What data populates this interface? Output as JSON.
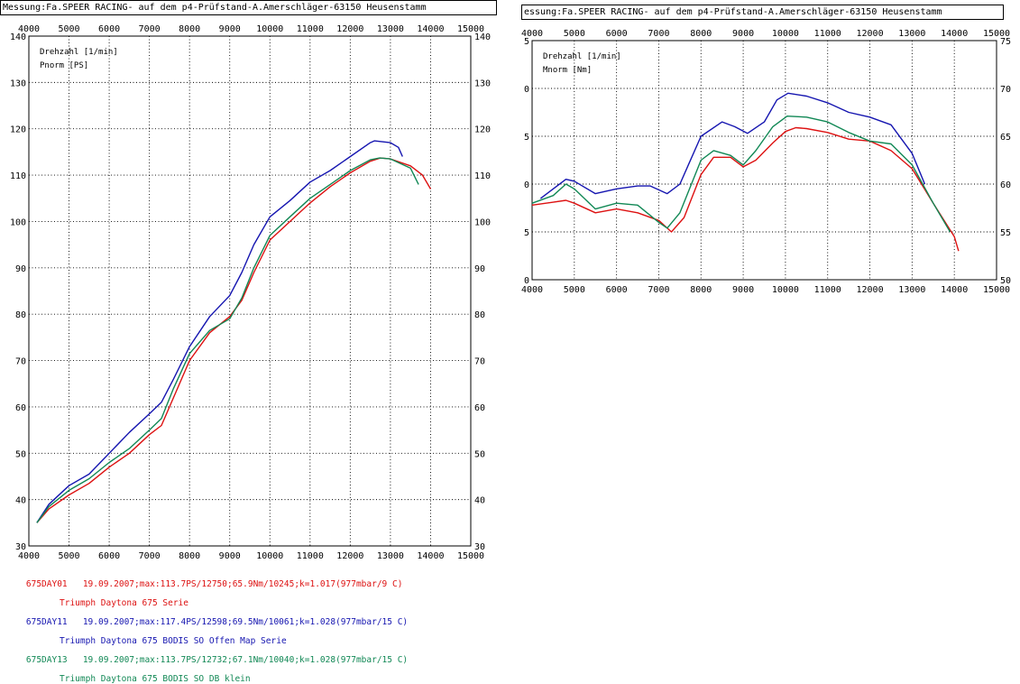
{
  "headers": {
    "left": "Messung:Fa.SPEER RACING- auf dem p4-Prüfstand-A.Amerschläger-63150 Heusenstamm",
    "right": "essung:Fa.SPEER RACING- auf dem p4-Prüfstand-A.Amerschläger-63150 Heusenstamm"
  },
  "colors": {
    "red": "#dd1111",
    "blue": "#1515b0",
    "green": "#118855",
    "grid": "#000000"
  },
  "chart_data": [
    {
      "type": "line",
      "title": "",
      "xlabel": "Drehzahl [1/min]",
      "ylabel": "Pnorm [PS]",
      "xlim": [
        4000,
        15000
      ],
      "ylim": [
        30,
        140
      ],
      "x_ticks": [
        4000,
        5000,
        6000,
        7000,
        8000,
        9000,
        10000,
        11000,
        12000,
        13000,
        14000,
        15000
      ],
      "y_ticks": [
        30,
        40,
        50,
        60,
        70,
        80,
        90,
        100,
        110,
        120,
        130,
        140
      ],
      "grid": true,
      "series": [
        {
          "name": "675DAY01",
          "color": "red",
          "x": [
            4200,
            4500,
            5000,
            5500,
            6000,
            6500,
            7000,
            7300,
            7600,
            8000,
            8500,
            9000,
            9300,
            9600,
            10000,
            10500,
            11000,
            11500,
            12000,
            12500,
            12750,
            13000,
            13500,
            13800,
            14000
          ],
          "y": [
            35,
            38,
            41,
            43.5,
            47,
            50,
            54,
            56,
            62,
            70,
            76,
            79.5,
            83,
            89,
            96,
            100,
            104,
            107.5,
            110.5,
            113,
            113.7,
            113.5,
            112,
            110,
            107
          ]
        },
        {
          "name": "675DAY11",
          "color": "blue",
          "x": [
            4200,
            4500,
            5000,
            5500,
            6000,
            6500,
            7000,
            7300,
            7600,
            8000,
            8500,
            9000,
            9300,
            9600,
            10000,
            10500,
            11000,
            11500,
            12000,
            12500,
            12600,
            13000,
            13200,
            13300
          ],
          "y": [
            35,
            39,
            43,
            45.5,
            50,
            54.5,
            58.5,
            61,
            66,
            73,
            79.5,
            84,
            89,
            95,
            101,
            104.5,
            108.5,
            111,
            114,
            117,
            117.4,
            117,
            116,
            114
          ]
        },
        {
          "name": "675DAY13",
          "color": "green",
          "x": [
            4200,
            4500,
            5000,
            5500,
            6000,
            6500,
            7000,
            7300,
            7600,
            8000,
            8500,
            9000,
            9300,
            9600,
            10000,
            10500,
            11000,
            11500,
            12000,
            12500,
            12730,
            13000,
            13500,
            13700
          ],
          "y": [
            35,
            38.5,
            42,
            44.5,
            48,
            51,
            55,
            57.5,
            64,
            71.5,
            76.5,
            79,
            83.5,
            90,
            97,
            101,
            105,
            108,
            111,
            113.3,
            113.7,
            113.5,
            111.5,
            108
          ]
        }
      ]
    },
    {
      "type": "line",
      "title": "",
      "xlabel": "Drehzahl [1/min]",
      "ylabel": "Mnorm [Nm]",
      "xlim": [
        4000,
        15000
      ],
      "ylim": [
        50,
        75
      ],
      "x_ticks": [
        4000,
        5000,
        6000,
        7000,
        8000,
        9000,
        10000,
        11000,
        12000,
        13000,
        14000,
        15000
      ],
      "y_ticks": [
        50,
        55,
        60,
        65,
        70,
        75
      ],
      "grid": true,
      "series": [
        {
          "name": "675DAY01",
          "color": "red",
          "x": [
            4000,
            4500,
            4800,
            5000,
            5500,
            6000,
            6500,
            7000,
            7300,
            7600,
            8000,
            8300,
            8700,
            9000,
            9300,
            9700,
            10000,
            10245,
            10500,
            11000,
            11500,
            12000,
            12500,
            13000,
            13500,
            14000,
            14100
          ],
          "y": [
            57.8,
            58.1,
            58.3,
            58.0,
            57.0,
            57.4,
            57.0,
            56.2,
            55.0,
            56.5,
            61.0,
            62.8,
            62.8,
            61.8,
            62.5,
            64.3,
            65.5,
            65.9,
            65.8,
            65.4,
            64.7,
            64.5,
            63.5,
            61.6,
            58.0,
            54.5,
            53.0
          ]
        },
        {
          "name": "675DAY11",
          "color": "blue",
          "x": [
            4200,
            4500,
            4800,
            5000,
            5500,
            6000,
            6500,
            6800,
            7200,
            7500,
            8000,
            8500,
            8800,
            9100,
            9500,
            9800,
            10061,
            10500,
            11000,
            11500,
            12000,
            12500,
            13000,
            13300
          ],
          "y": [
            58.5,
            59.5,
            60.5,
            60.3,
            59.0,
            59.5,
            59.8,
            59.8,
            59.0,
            60.0,
            65.0,
            66.5,
            66.0,
            65.3,
            66.5,
            68.8,
            69.5,
            69.2,
            68.5,
            67.5,
            67.0,
            66.2,
            63.2,
            60.0
          ]
        },
        {
          "name": "675DAY13",
          "color": "green",
          "x": [
            4000,
            4500,
            4800,
            5000,
            5500,
            6000,
            6500,
            7000,
            7200,
            7500,
            8000,
            8300,
            8700,
            9000,
            9300,
            9700,
            10040,
            10500,
            11000,
            11500,
            12000,
            12500,
            13000,
            13500,
            13900
          ],
          "y": [
            58.0,
            58.8,
            60.0,
            59.5,
            57.4,
            58.0,
            57.8,
            56.0,
            55.4,
            57.0,
            62.5,
            63.5,
            63.0,
            62.0,
            63.5,
            66.0,
            67.1,
            67.0,
            66.5,
            65.4,
            64.5,
            64.2,
            62.0,
            58.0,
            55.0
          ]
        }
      ]
    }
  ],
  "legend": [
    {
      "id": "675DAY01",
      "color": "red",
      "line1": "19.09.2007;max:113.7PS/12750;65.9Nm/10245;k=1.017(977mbar/9 C)",
      "line2": "Triumph Daytona 675 Serie"
    },
    {
      "id": "675DAY11",
      "color": "blue",
      "line1": "19.09.2007;max:117.4PS/12598;69.5Nm/10061;k=1.028(977mbar/15 C)",
      "line2": "Triumph Daytona 675 BODIS SO Offen Map Serie"
    },
    {
      "id": "675DAY13",
      "color": "green",
      "line1": "19.09.2007;max:113.7PS/12732;67.1Nm/10040;k=1.028(977mbar/15 C)",
      "line2": "Triumph Daytona 675 BODIS SO DB klein"
    }
  ]
}
